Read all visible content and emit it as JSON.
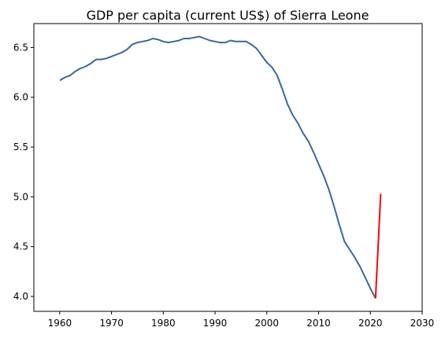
{
  "chart_data": {
    "type": "line",
    "title": "GDP per capita (current US$) of Sierra Leone",
    "xlabel": "",
    "ylabel": "",
    "xlim": [
      1955,
      2030
    ],
    "ylim": [
      3.85,
      6.74
    ],
    "x_ticks": [
      1960,
      1970,
      1980,
      1990,
      2000,
      2010,
      2020,
      2030
    ],
    "x_tick_labels": [
      "1960",
      "1970",
      "1980",
      "1990",
      "2000",
      "2010",
      "2020",
      "2030"
    ],
    "y_ticks": [
      4.0,
      4.5,
      5.0,
      5.5,
      6.0,
      6.5
    ],
    "y_tick_labels": [
      "4.0",
      "4.5",
      "5.0",
      "5.5",
      "6.0",
      "6.5"
    ],
    "grid": false,
    "series": [
      {
        "color": "#3a66a0",
        "x": [
          1960,
          1961,
          1962,
          1963,
          1964,
          1965,
          1966,
          1967,
          1968,
          1969,
          1970,
          1971,
          1972,
          1973,
          1974,
          1975,
          1976,
          1977,
          1978,
          1979,
          1980,
          1981,
          1982,
          1983,
          1984,
          1985,
          1986,
          1987,
          1988,
          1989,
          1990,
          1991,
          1992,
          1993,
          1994,
          1995,
          1996,
          1997,
          1998,
          1999,
          2000,
          2001,
          2002,
          2003,
          2004,
          2005,
          2006,
          2007,
          2008,
          2009,
          2010,
          2011,
          2012,
          2013,
          2014,
          2015,
          2016,
          2017,
          2018,
          2019,
          2020,
          2021
        ],
        "y": [
          6.17,
          6.2,
          6.22,
          6.26,
          6.29,
          6.31,
          6.34,
          6.38,
          6.38,
          6.39,
          6.41,
          6.43,
          6.45,
          6.48,
          6.53,
          6.55,
          6.56,
          6.57,
          6.59,
          6.58,
          6.56,
          6.55,
          6.56,
          6.57,
          6.59,
          6.59,
          6.6,
          6.61,
          6.59,
          6.57,
          6.56,
          6.55,
          6.55,
          6.57,
          6.56,
          6.56,
          6.56,
          6.53,
          6.49,
          6.42,
          6.35,
          6.3,
          6.22,
          6.08,
          5.93,
          5.82,
          5.74,
          5.64,
          5.56,
          5.45,
          5.33,
          5.21,
          5.07,
          4.9,
          4.72,
          4.55,
          4.47,
          4.39,
          4.3,
          4.19,
          4.08,
          3.98
        ]
      },
      {
        "color": "#ff0000",
        "x": [
          2021,
          2022
        ],
        "y": [
          3.98,
          5.03
        ]
      }
    ]
  }
}
